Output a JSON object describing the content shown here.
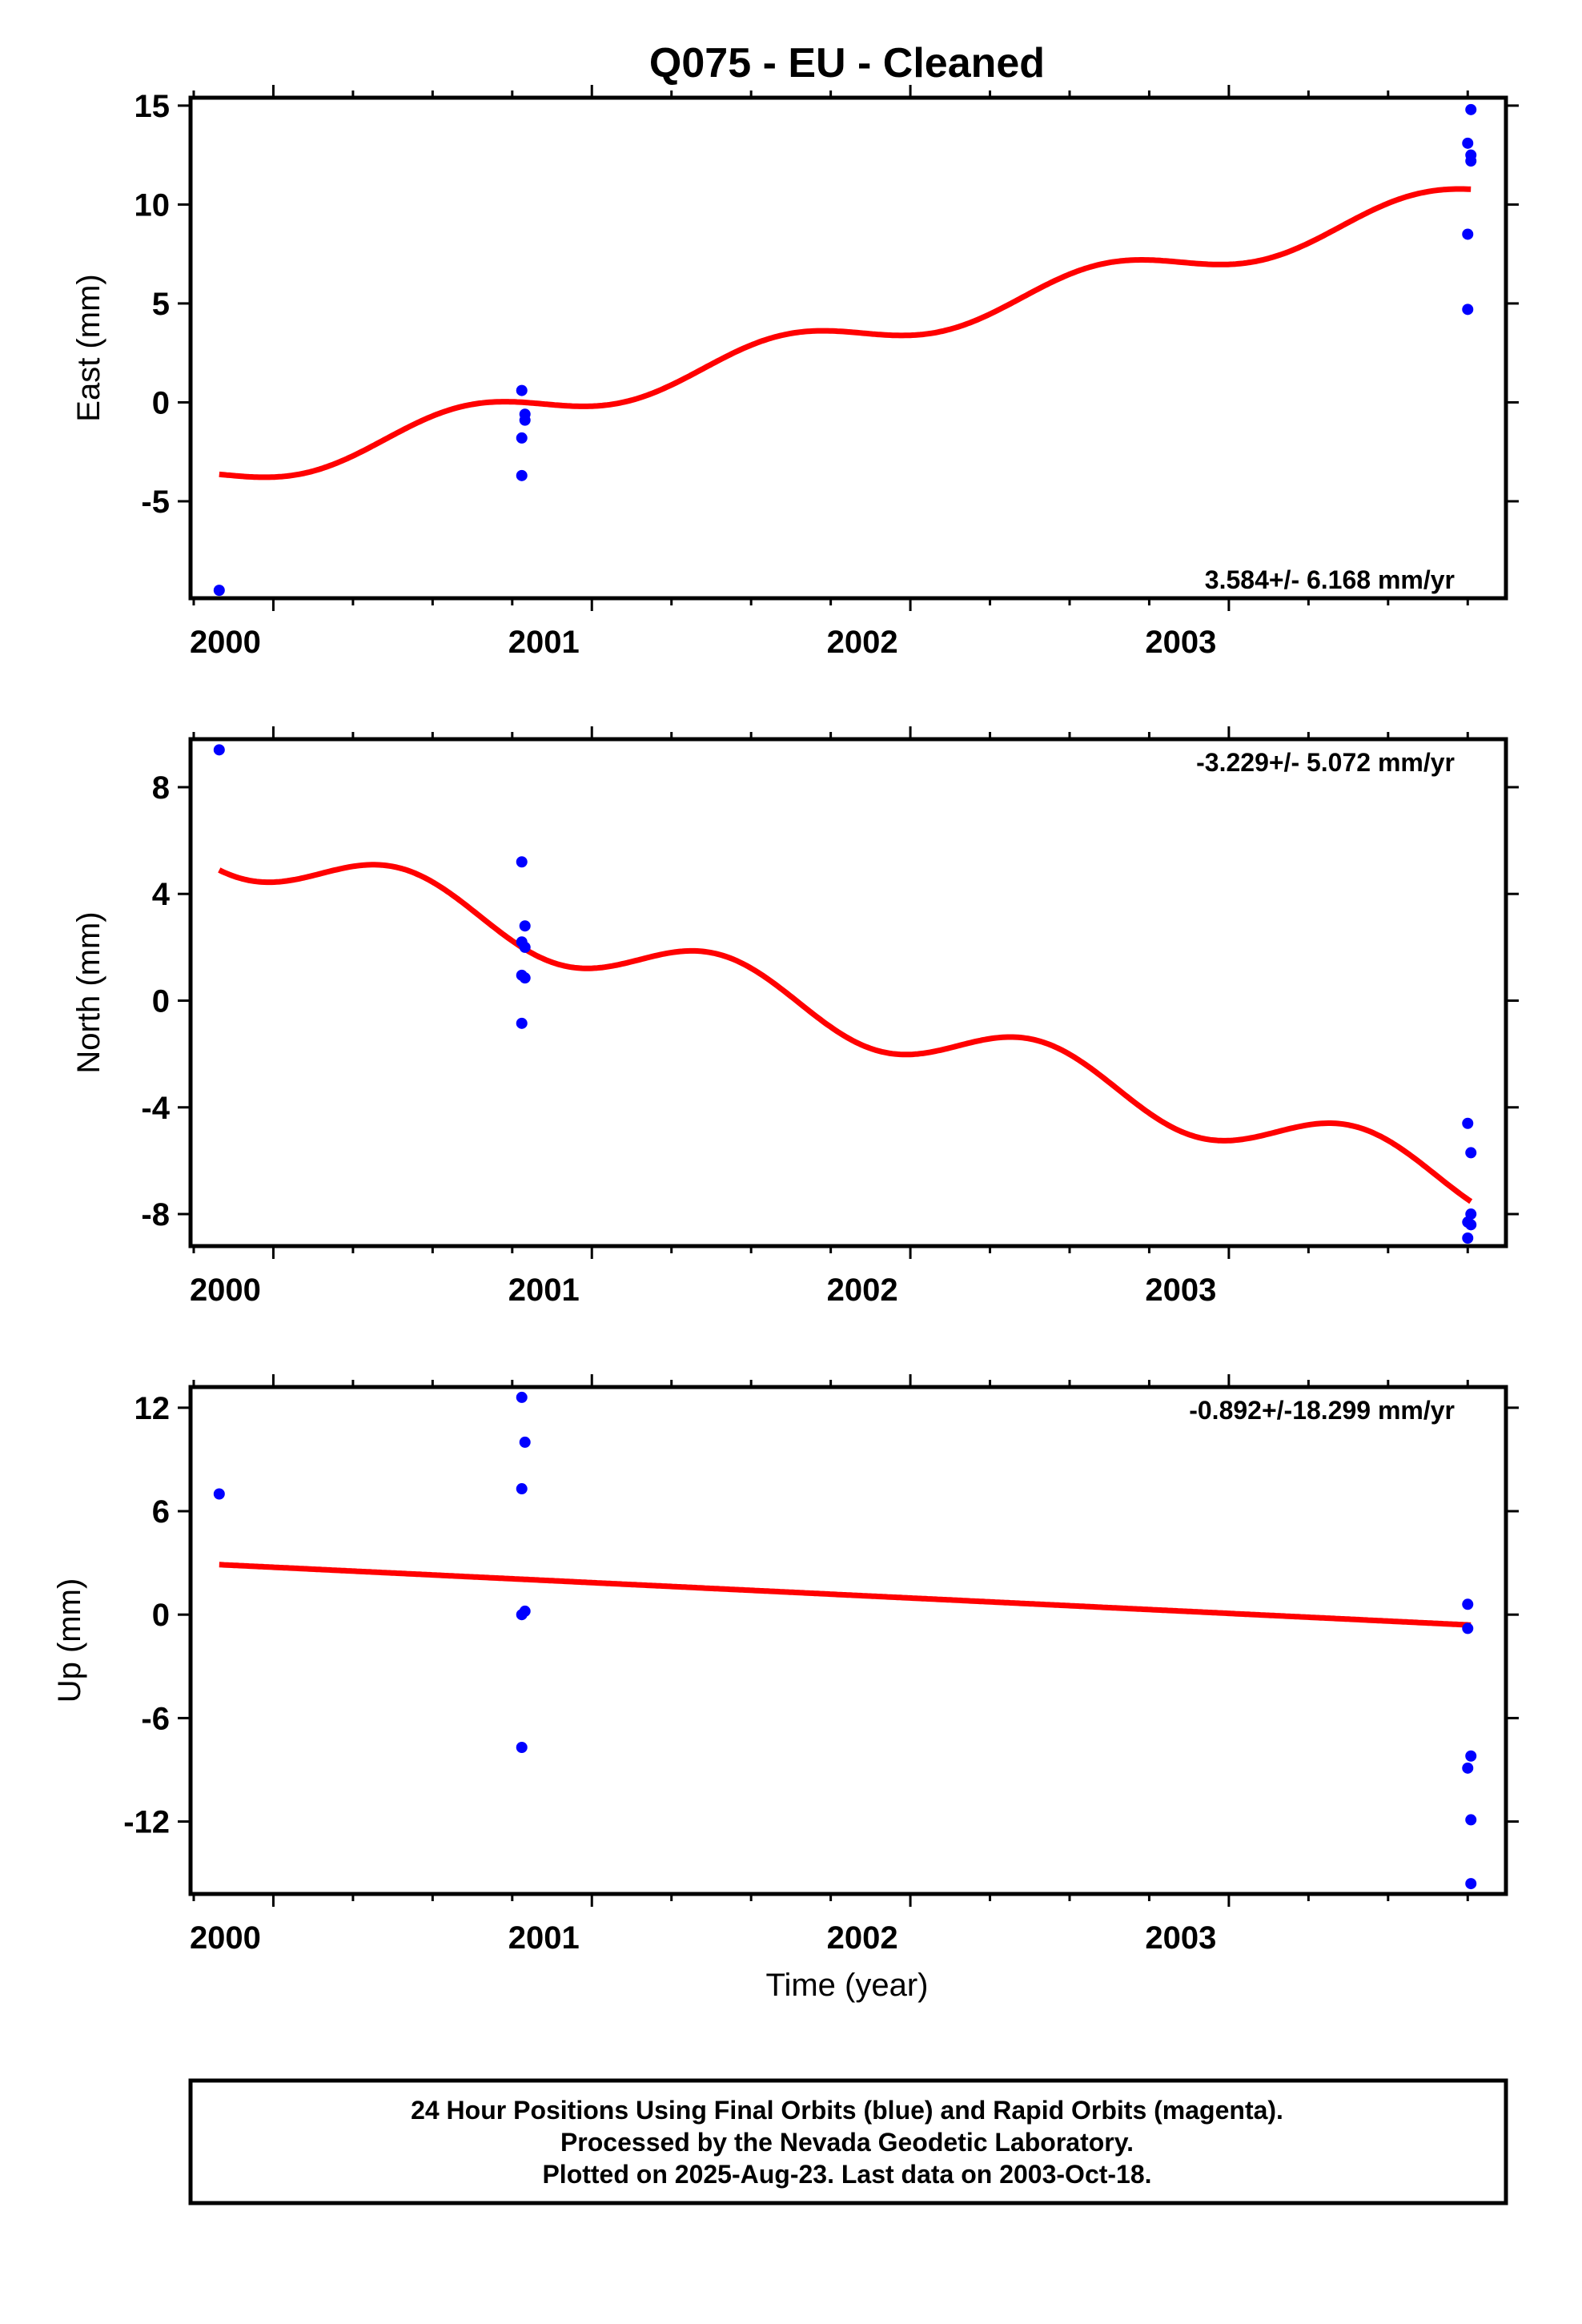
{
  "title": "Q075  - EU - Cleaned",
  "colors": {
    "data_points": "#0000ff",
    "model": "#ff0000",
    "frame": "#000000"
  },
  "xlabel": "Time (year)",
  "footer": {
    "line1": "24 Hour Positions Using Final Orbits (blue) and Rapid Orbits (magenta).",
    "line2": "Processed by the Nevada Geodetic Laboratory.",
    "line3": "Plotted on 2025-Aug-23. Last data on 2003-Oct-18."
  },
  "chart_data": [
    {
      "type": "scatter",
      "ylabel": "East (mm)",
      "rate_label": "3.584+/- 6.168 mm/yr",
      "xlim": [
        1999.74,
        2003.87
      ],
      "ylim": [
        -9.9,
        15.4
      ],
      "xticks": [
        2000,
        2001,
        2002,
        2003
      ],
      "yticks": [
        -5,
        0,
        5,
        10,
        15
      ],
      "points": [
        [
          1999.83,
          -9.5
        ],
        [
          2000.78,
          0.6
        ],
        [
          2000.79,
          -0.6
        ],
        [
          2000.79,
          -0.9
        ],
        [
          2000.78,
          -1.8
        ],
        [
          2000.78,
          -3.7
        ],
        [
          2003.76,
          14.8
        ],
        [
          2003.75,
          13.1
        ],
        [
          2003.76,
          12.5
        ],
        [
          2003.76,
          12.2
        ],
        [
          2003.75,
          8.5
        ],
        [
          2003.75,
          4.7
        ]
      ],
      "model": {
        "intercept": -3.13,
        "slope": 3.584,
        "amp": 0.8,
        "period": 1.0,
        "phase": 0.35,
        "ref_year": 2000.0
      }
    },
    {
      "type": "scatter",
      "ylabel": "North (mm)",
      "rate_label": "-3.229+/- 5.072 mm/yr",
      "xlim": [
        1999.74,
        2003.87
      ],
      "ylim": [
        -9.2,
        9.8
      ],
      "xticks": [
        2000,
        2001,
        2002,
        2003
      ],
      "yticks": [
        -8,
        -4,
        0,
        4,
        8
      ],
      "points": [
        [
          1999.83,
          9.4
        ],
        [
          2000.78,
          5.2
        ],
        [
          2000.79,
          2.8
        ],
        [
          2000.78,
          2.2
        ],
        [
          2000.79,
          2.0
        ],
        [
          2000.78,
          0.95
        ],
        [
          2000.79,
          0.85
        ],
        [
          2000.78,
          -0.85
        ],
        [
          2003.75,
          -4.6
        ],
        [
          2003.76,
          -5.7
        ],
        [
          2003.76,
          -8.0
        ],
        [
          2003.75,
          -8.3
        ],
        [
          2003.76,
          -8.4
        ],
        [
          2003.75,
          -8.9
        ]
      ],
      "model": {
        "intercept": 5.25,
        "slope": -3.229,
        "amp": 1.0,
        "period": 1.0,
        "phase": 0.15,
        "ref_year": 2000.0
      }
    },
    {
      "type": "scatter",
      "ylabel": "Up (mm)",
      "rate_label": "-0.892+/-18.299 mm/yr",
      "xlim": [
        1999.74,
        2003.87
      ],
      "ylim": [
        -16.2,
        13.2
      ],
      "xticks": [
        2000,
        2001,
        2002,
        2003
      ],
      "yticks": [
        -12,
        -6,
        0,
        6,
        12
      ],
      "ytick_labels": [
        "-12",
        "-6",
        "0",
        "6",
        "12"
      ],
      "points": [
        [
          1999.83,
          7.0
        ],
        [
          2000.78,
          12.6
        ],
        [
          2000.79,
          10.0
        ],
        [
          2000.78,
          7.3
        ],
        [
          2000.79,
          0.2
        ],
        [
          2000.78,
          0.0
        ],
        [
          2000.78,
          -7.7
        ],
        [
          2003.75,
          0.6
        ],
        [
          2003.75,
          -0.8
        ],
        [
          2003.76,
          -8.2
        ],
        [
          2003.75,
          -8.9
        ],
        [
          2003.76,
          -11.9
        ],
        [
          2003.76,
          -15.6
        ]
      ],
      "model": {
        "intercept": 2.9,
        "slope": -0.892,
        "amp": 0.0,
        "period": 1.0,
        "phase": 0.0,
        "ref_year": 1999.83
      }
    }
  ]
}
